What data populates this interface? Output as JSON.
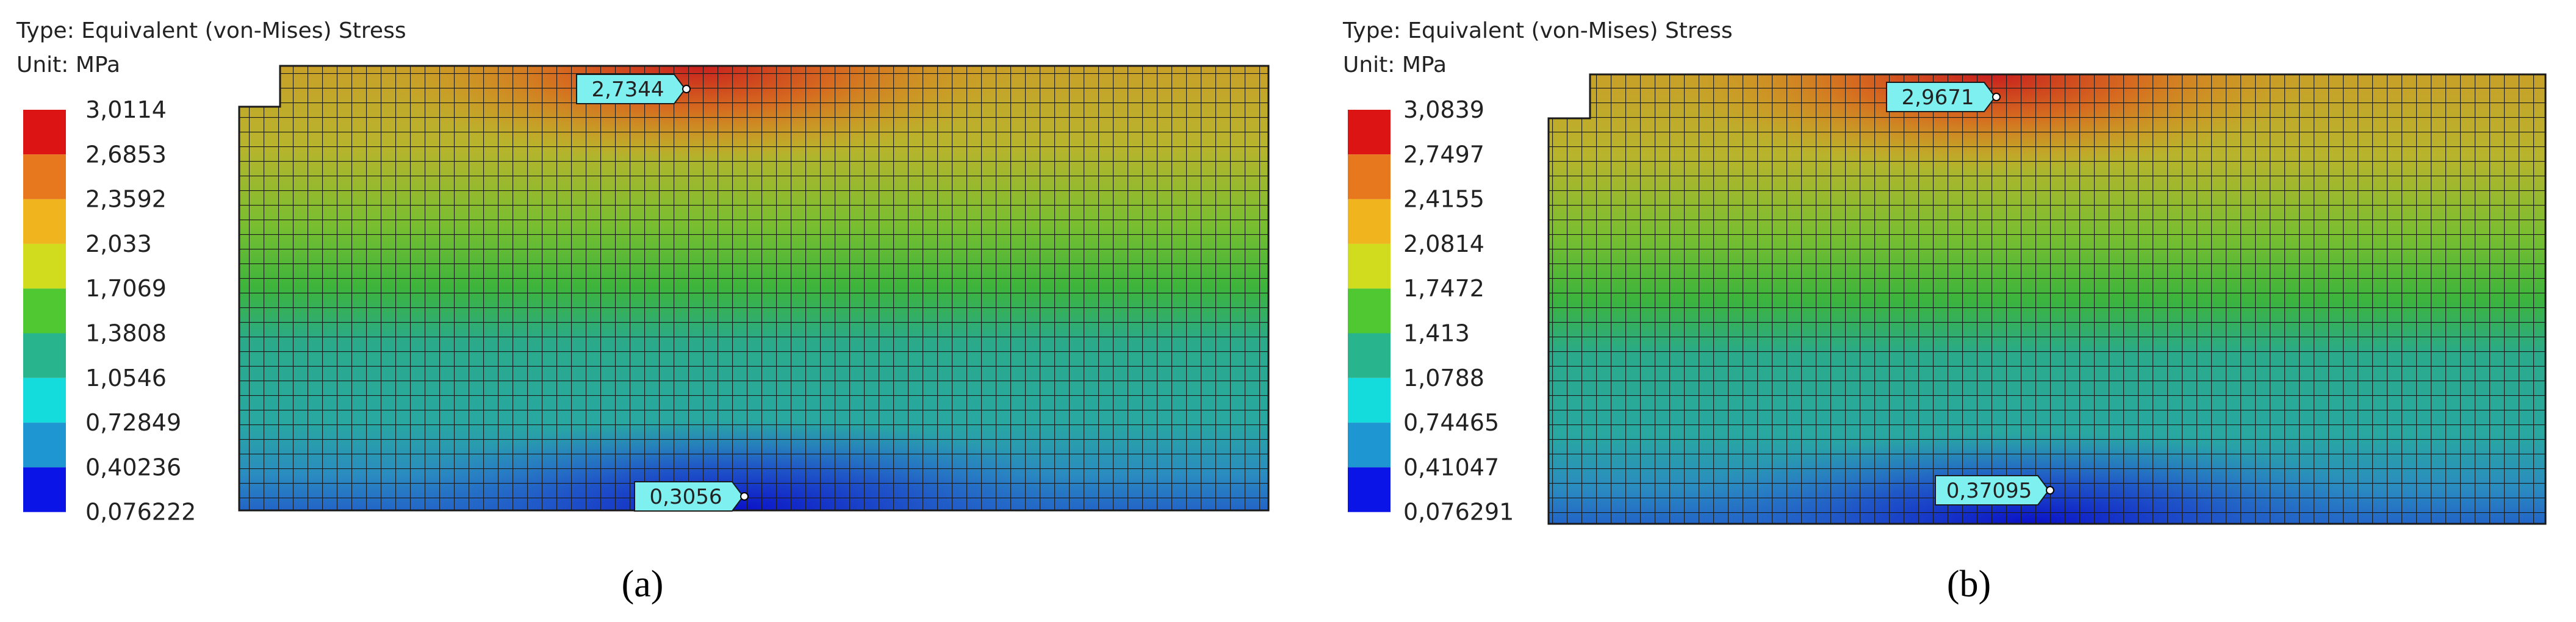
{
  "panels": [
    {
      "type_label": "Type: Equivalent (von-Mises) Stress",
      "unit_label": "Unit: MPa",
      "legend": [
        "3,0114",
        "2,6853",
        "2,3592",
        "2,033",
        "1,7069",
        "1,3808",
        "1,0546",
        "0,72849",
        "0,40236",
        "0,076222"
      ],
      "max_probe": "2,7344",
      "min_probe": "0,3056",
      "caption": "(a)"
    },
    {
      "type_label": "Type: Equivalent (von-Mises) Stress",
      "unit_label": "Unit: MPa",
      "legend": [
        "3,0839",
        "2,7497",
        "2,4155",
        "2,0814",
        "1,7472",
        "1,413",
        "1,0788",
        "0,74465",
        "0,41047",
        "0,076291"
      ],
      "max_probe": "2,9671",
      "min_probe": "0,37095",
      "caption": "(b)"
    }
  ]
}
